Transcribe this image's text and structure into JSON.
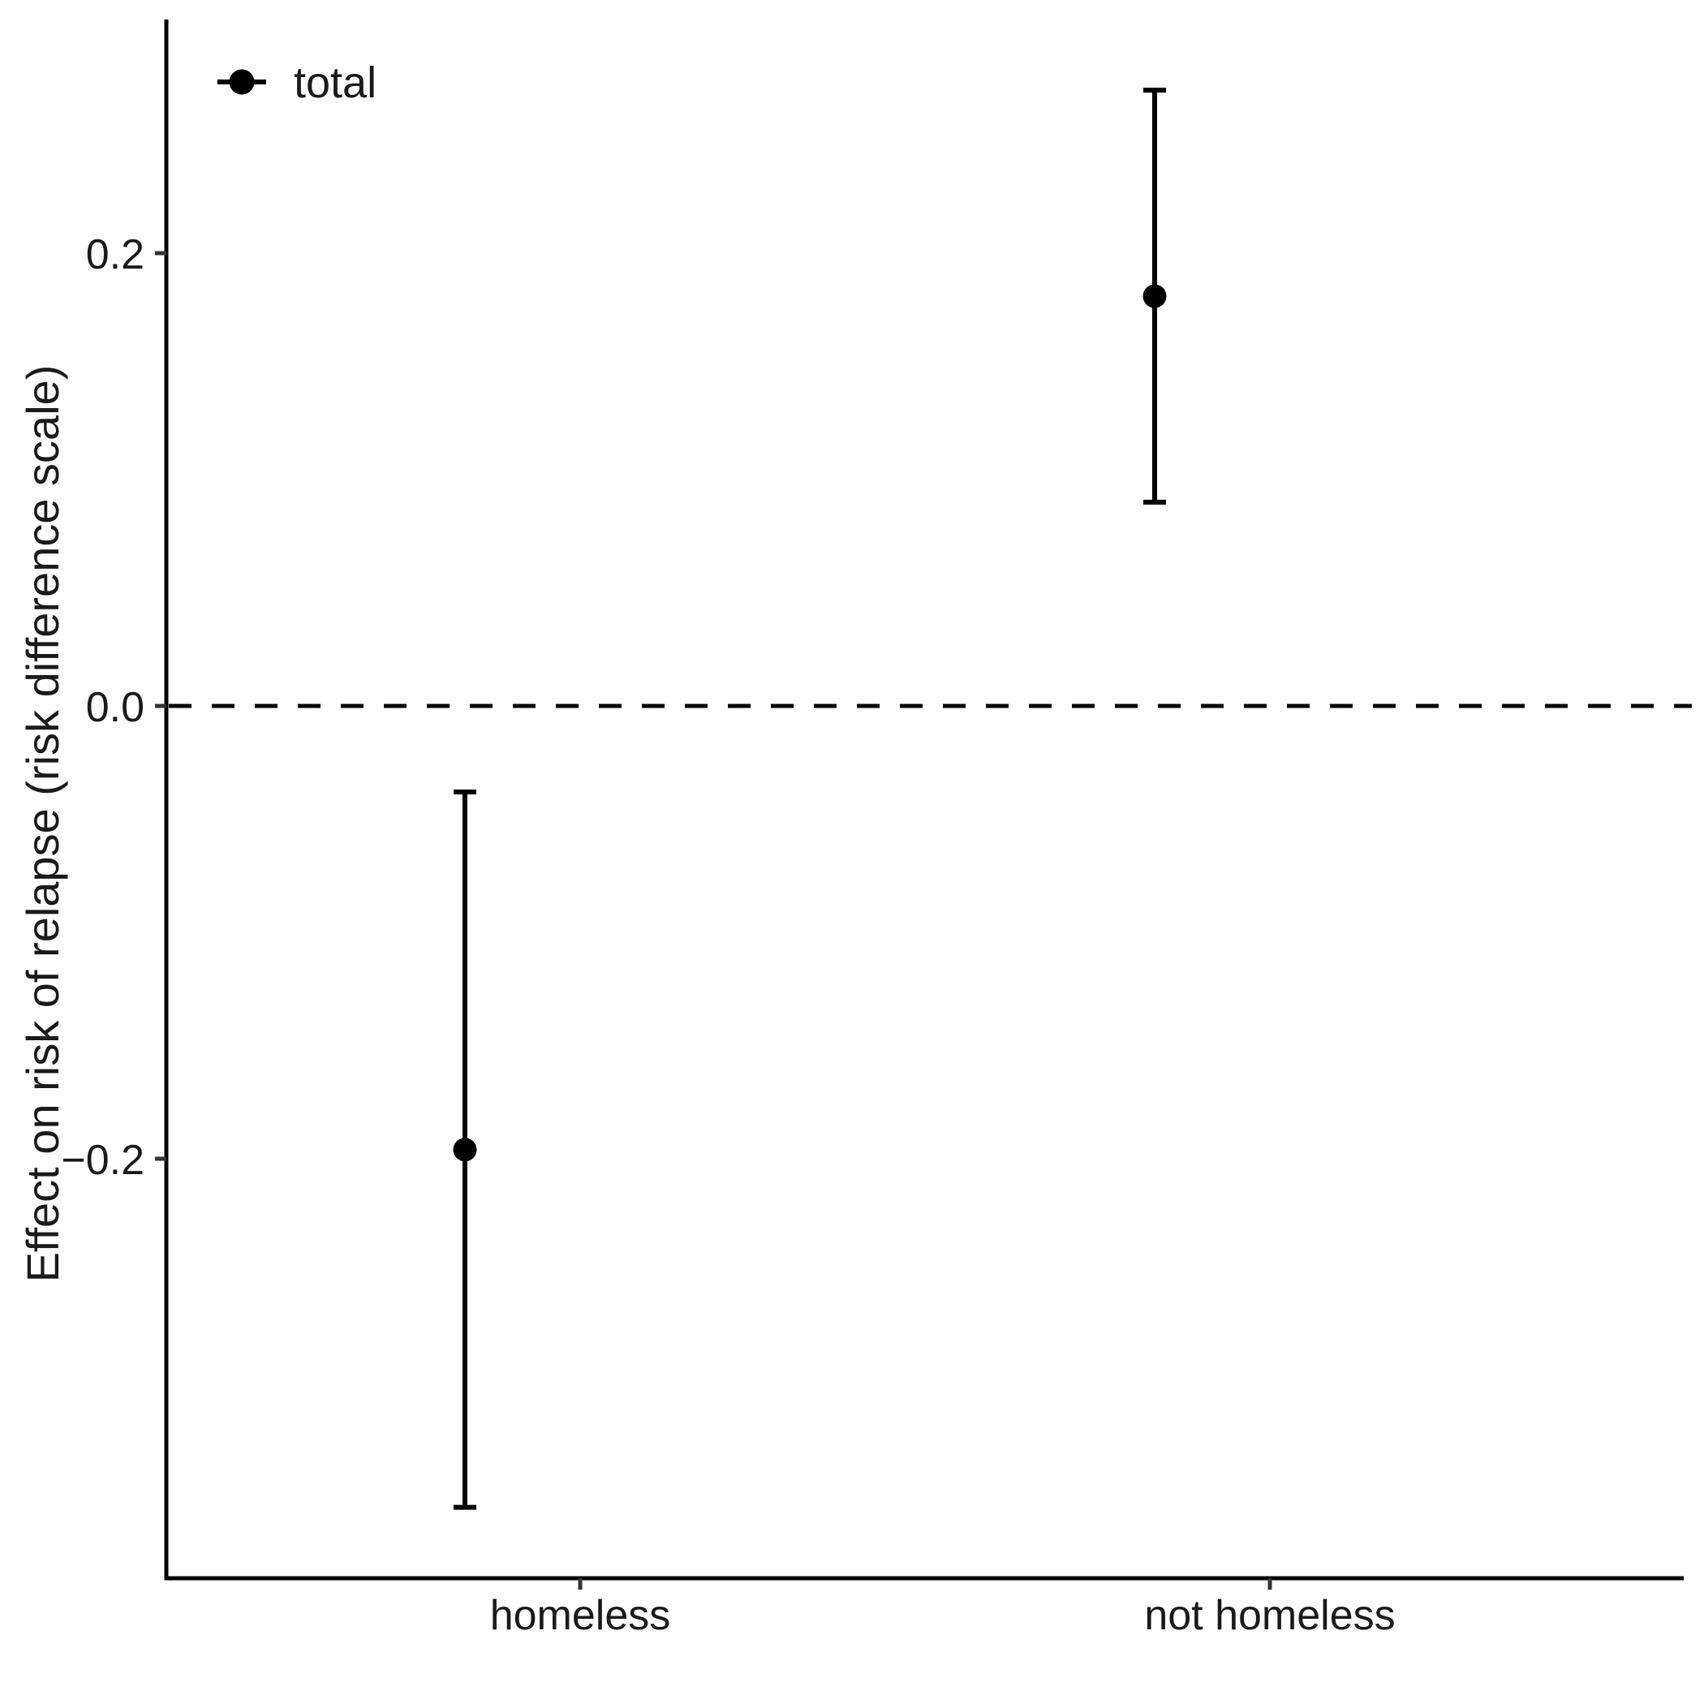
{
  "legend": {
    "label": "total",
    "marker": "point-with-horizontal-line"
  },
  "y_axis": {
    "title": "Effect on risk of relapse (risk difference scale)",
    "ticks": [
      {
        "label": "0.2",
        "value": 0.2
      },
      {
        "label": "0.0",
        "value": 0.0
      },
      {
        "label": "−0.2",
        "value": -0.2
      }
    ]
  },
  "x_axis": {
    "categories": [
      {
        "label": "homeless"
      },
      {
        "label": "not homeless"
      }
    ]
  },
  "reference_line": {
    "value": 0.0,
    "style": "dashed"
  },
  "chart_data": {
    "type": "scatter",
    "subtype": "pointrange-with-error-bars",
    "title": "",
    "xlabel": "",
    "ylabel": "Effect on risk of relapse (risk difference scale)",
    "categories": [
      "homeless",
      "not homeless"
    ],
    "series": [
      {
        "name": "total",
        "estimates": [
          -0.196,
          0.181
        ],
        "ci_low": [
          -0.354,
          0.09
        ],
        "ci_high": [
          -0.038,
          0.272
        ]
      }
    ],
    "yticks": [
      -0.2,
      0.0,
      0.2
    ],
    "ylim": [
      -0.386,
      0.303
    ],
    "reference_line": 0.0,
    "grid": false,
    "legend_position": "top-left-inside",
    "colors": {
      "points": "#000000",
      "axis": "#000000",
      "text": "#1a1a1a"
    }
  }
}
